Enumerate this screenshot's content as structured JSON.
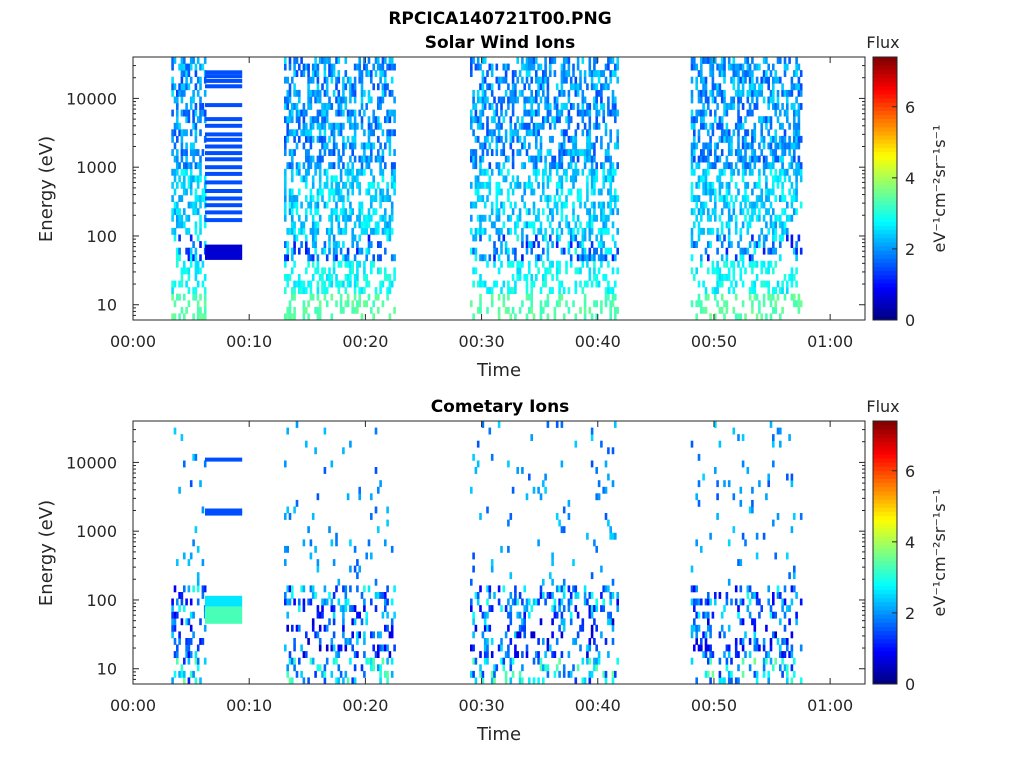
{
  "figure": {
    "title": "RPCICA140721T00.PNG"
  },
  "colorbar": {
    "title": "Flux",
    "label": "eV⁻¹cm⁻²sr⁻¹s⁻¹",
    "ticks": [
      "0",
      "2",
      "4",
      "6"
    ],
    "range": [
      0,
      7.4
    ],
    "colormap": "jet"
  },
  "chart_data": [
    {
      "type": "heatmap",
      "title": "Solar Wind Ions",
      "xlabel": "Time",
      "ylabel": "Energy (eV)",
      "x_ticks": [
        "00:00",
        "00:10",
        "00:20",
        "00:30",
        "00:40",
        "00:50",
        "01:00"
      ],
      "x_tick_minutes": [
        0,
        10,
        20,
        30,
        40,
        50,
        60
      ],
      "xlim_minutes": [
        0,
        63
      ],
      "y_scale": "log",
      "y_ticks": [
        "10",
        "100",
        "1000",
        "10000"
      ],
      "y_tick_values": [
        10,
        100,
        1000,
        10000
      ],
      "ylim": [
        6,
        40000
      ],
      "flux_range": [
        0,
        7.4
      ],
      "data_intervals_minutes": [
        [
          3.3,
          6.2
        ],
        [
          13.0,
          22.5
        ],
        [
          29.0,
          41.8
        ],
        [
          48.0,
          57.5
        ]
      ],
      "seed": 7,
      "bands": [
        {
          "e_min": 1000,
          "e_max": 40000,
          "density": 0.5,
          "flux_min": 1.4,
          "flux_max": 2.6
        },
        {
          "e_min": 110,
          "e_max": 1000,
          "density": 0.45,
          "flux_min": 2.0,
          "flux_max": 2.9
        },
        {
          "e_min": 45,
          "e_max": 110,
          "density": 0.35,
          "flux_min": 1.0,
          "flux_max": 3.0
        },
        {
          "e_min": 14,
          "e_max": 45,
          "density": 0.4,
          "flux_min": 2.5,
          "flux_max": 3.1
        },
        {
          "e_min": 6,
          "e_max": 14,
          "density": 0.3,
          "flux_min": 3.2,
          "flux_max": 3.6
        }
      ],
      "fixed_blocks": [
        {
          "t_start": 6.2,
          "t_end": 9.4,
          "energies": [
            24000,
            21000,
            18000,
            15000,
            8000,
            5000,
            4000,
            3000,
            2500,
            2000,
            1600,
            1300,
            1000,
            800,
            600,
            450,
            350,
            280,
            220,
            170
          ],
          "flux": 1.5
        },
        {
          "t_start": 6.2,
          "t_end": 9.4,
          "e_min": 45,
          "e_max": 75,
          "flux": 0.6
        }
      ]
    },
    {
      "type": "heatmap",
      "title": "Cometary Ions",
      "xlabel": "Time",
      "ylabel": "Energy (eV)",
      "x_ticks": [
        "00:00",
        "00:10",
        "00:20",
        "00:30",
        "00:40",
        "00:50",
        "01:00"
      ],
      "x_tick_minutes": [
        0,
        10,
        20,
        30,
        40,
        50,
        60
      ],
      "xlim_minutes": [
        0,
        63
      ],
      "y_scale": "log",
      "y_ticks": [
        "10",
        "100",
        "1000",
        "10000"
      ],
      "y_tick_values": [
        10,
        100,
        1000,
        10000
      ],
      "ylim": [
        6,
        40000
      ],
      "flux_range": [
        0,
        7.4
      ],
      "data_intervals_minutes": [
        [
          3.3,
          6.2
        ],
        [
          13.0,
          22.5
        ],
        [
          29.0,
          41.8
        ],
        [
          48.0,
          57.5
        ]
      ],
      "seed": 23,
      "bands": [
        {
          "e_min": 150,
          "e_max": 40000,
          "density": 0.05,
          "flux_min": 1.5,
          "flux_max": 2.5
        },
        {
          "e_min": 60,
          "e_max": 150,
          "density": 0.3,
          "flux_min": 0.8,
          "flux_max": 3.0
        },
        {
          "e_min": 14,
          "e_max": 60,
          "density": 0.25,
          "flux_min": 0.5,
          "flux_max": 2.6
        },
        {
          "e_min": 6,
          "e_max": 14,
          "density": 0.28,
          "flux_min": 1.2,
          "flux_max": 3.6
        }
      ],
      "fixed_blocks": [
        {
          "t_start": 6.2,
          "t_end": 9.4,
          "energies": [
            11000,
            2000,
            1800
          ],
          "flux": 1.5
        },
        {
          "t_start": 6.2,
          "t_end": 9.4,
          "e_min": 80,
          "e_max": 115,
          "flux": 2.6
        },
        {
          "t_start": 6.2,
          "t_end": 9.4,
          "e_min": 45,
          "e_max": 80,
          "flux": 3.3
        }
      ]
    }
  ]
}
